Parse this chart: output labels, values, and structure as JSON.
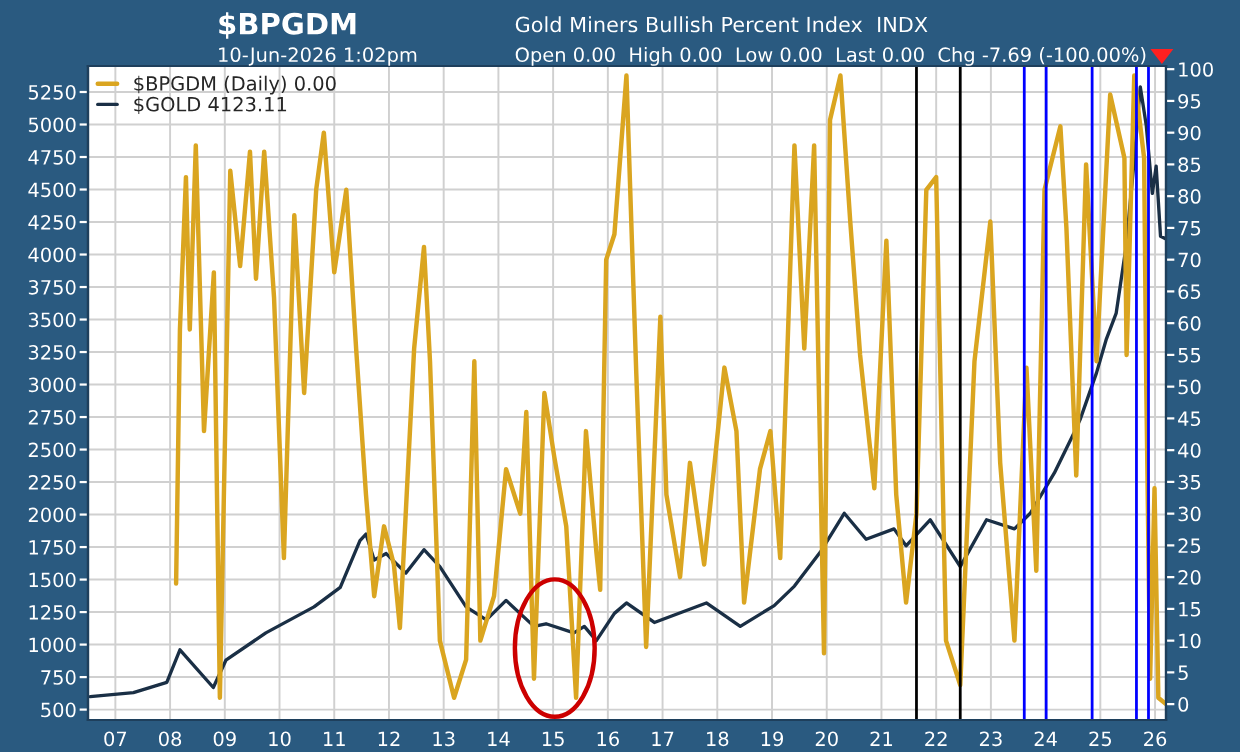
{
  "chart_data": {
    "type": "line",
    "title": "$BPGDM",
    "subtitle": "Gold Miners Bullish Percent Index  INDX",
    "annotations": [
      "10-Jun-2026 1:02pm",
      "Open 0.00  High 0.00  Low 0.00  Last 0.00  Chg -7.69 (-100.00%)"
    ],
    "series": [
      {
        "name": "$BPGDM (Daily) 0.00",
        "color": "#daa520",
        "axis": "y2",
        "x": [
          2008.11,
          2008.18,
          2008.29,
          2008.36,
          2008.47,
          2008.62,
          2008.8,
          2008.91,
          2009.02,
          2009.1,
          2009.28,
          2009.46,
          2009.57,
          2009.72,
          2009.9,
          2010.08,
          2010.27,
          2010.45,
          2010.67,
          2010.81,
          2011.0,
          2011.22,
          2011.4,
          2011.58,
          2011.73,
          2011.91,
          2012.09,
          2012.2,
          2012.46,
          2012.64,
          2012.75,
          2012.93,
          2013.19,
          2013.41,
          2013.56,
          2013.67,
          2013.92,
          2014.14,
          2014.4,
          2014.51,
          2014.65,
          2014.84,
          2015.02,
          2015.24,
          2015.42,
          2015.6,
          2015.79,
          2015.86,
          2015.97,
          2016.12,
          2016.34,
          2016.52,
          2016.7,
          2016.96,
          2017.07,
          2017.32,
          2017.5,
          2017.76,
          2018.13,
          2018.35,
          2018.49,
          2018.78,
          2018.97,
          2019.15,
          2019.41,
          2019.59,
          2019.77,
          2019.95,
          2020.06,
          2020.25,
          2020.43,
          2020.61,
          2020.87,
          2021.09,
          2021.27,
          2021.45,
          2021.64,
          2021.82,
          2022.0,
          2022.18,
          2022.44,
          2022.7,
          2022.99,
          2023.17,
          2023.43,
          2023.65,
          2023.83,
          2023.98,
          2024.27,
          2024.38,
          2024.56,
          2024.74,
          2024.93,
          2025.18,
          2025.44,
          2025.48,
          2025.62,
          2025.8,
          2025.84,
          2025.91,
          2025.99,
          2026.06,
          2026.2
        ],
        "values": [
          19,
          59,
          83,
          59,
          88,
          43,
          68,
          1,
          49,
          84,
          69,
          87,
          67,
          87,
          64,
          23,
          77,
          49,
          81,
          90,
          68,
          81,
          56,
          33,
          17,
          28,
          22,
          12,
          56,
          72,
          54,
          10,
          1,
          7,
          54,
          10,
          17,
          37,
          30,
          46,
          4,
          49,
          39,
          28,
          1,
          43,
          24,
          18,
          70,
          74,
          99,
          52,
          9,
          61,
          33,
          20,
          38,
          22,
          53,
          43,
          16,
          37,
          43,
          23,
          88,
          56,
          88,
          8,
          92,
          99,
          76,
          55,
          34,
          73,
          33,
          16,
          30,
          81,
          83,
          10,
          3,
          54,
          76,
          38,
          10,
          53,
          21,
          81,
          91,
          75,
          36,
          85,
          54,
          96,
          86,
          55,
          99,
          86,
          50,
          4,
          34,
          1,
          0
        ]
      },
      {
        "name": "$GOLD 4123.11",
        "color": "#1a2f45",
        "axis": "y",
        "x": [
          2006.54,
          2007.33,
          2007.94,
          2008.18,
          2008.79,
          2009.02,
          2009.75,
          2010.63,
          2011.11,
          2011.47,
          2011.58,
          2011.73,
          2011.95,
          2012.31,
          2012.64,
          2012.93,
          2013.41,
          2013.78,
          2014.14,
          2014.65,
          2014.87,
          2015.38,
          2015.57,
          2015.79,
          2016.12,
          2016.34,
          2016.85,
          2017.8,
          2018.42,
          2019.04,
          2019.41,
          2019.88,
          2020.32,
          2020.72,
          2021.23,
          2021.45,
          2021.89,
          2022.44,
          2022.92,
          2023.43,
          2023.72,
          2024.16,
          2024.52,
          2024.63,
          2024.93,
          2025.11,
          2025.29,
          2025.47,
          2025.62,
          2025.73,
          2025.84,
          2025.95,
          2026.02,
          2026.1,
          2026.2
        ],
        "values": [
          600,
          630,
          710,
          960,
          670,
          880,
          1090,
          1290,
          1440,
          1800,
          1850,
          1650,
          1700,
          1550,
          1730,
          1600,
          1290,
          1190,
          1340,
          1140,
          1160,
          1090,
          1140,
          1030,
          1240,
          1320,
          1170,
          1320,
          1140,
          1300,
          1450,
          1710,
          2010,
          1810,
          1890,
          1760,
          1960,
          1600,
          1960,
          1890,
          2010,
          2320,
          2630,
          2730,
          3090,
          3350,
          3550,
          4060,
          4730,
          5290,
          4990,
          4470,
          4680,
          4140,
          4120
        ]
      }
    ],
    "xlim": [
      2006.5,
      2026.2
    ],
    "xticks": [
      {
        "value": 2007,
        "label": "07"
      },
      {
        "value": 2008,
        "label": "08"
      },
      {
        "value": 2009,
        "label": "09"
      },
      {
        "value": 2010,
        "label": "10"
      },
      {
        "value": 2011,
        "label": "11"
      },
      {
        "value": 2012,
        "label": "12"
      },
      {
        "value": 2013,
        "label": "13"
      },
      {
        "value": 2014,
        "label": "14"
      },
      {
        "value": 2015,
        "label": "15"
      },
      {
        "value": 2016,
        "label": "16"
      },
      {
        "value": 2017,
        "label": "17"
      },
      {
        "value": 2018,
        "label": "18"
      },
      {
        "value": 2019,
        "label": "19"
      },
      {
        "value": 2020,
        "label": "20"
      },
      {
        "value": 2021,
        "label": "21"
      },
      {
        "value": 2022,
        "label": "22"
      },
      {
        "value": 2023,
        "label": "23"
      },
      {
        "value": 2024,
        "label": "24"
      },
      {
        "value": 2025,
        "label": "25"
      },
      {
        "value": 2026,
        "label": "26"
      }
    ],
    "ylim": [
      420,
      5450
    ],
    "yticks": [
      500,
      750,
      1000,
      1250,
      1500,
      1750,
      2000,
      2250,
      2500,
      2750,
      3000,
      3250,
      3500,
      3750,
      4000,
      4250,
      4500,
      4750,
      5000,
      5250
    ],
    "y2lim": [
      -2.5,
      100.5
    ],
    "y2ticks": [
      0,
      5,
      10,
      15,
      20,
      25,
      30,
      35,
      40,
      45,
      50,
      55,
      60,
      65,
      70,
      75,
      80,
      85,
      90,
      95,
      100
    ],
    "ref_lines": [
      {
        "axis": "x",
        "value": 2021.64,
        "color": "#000000"
      },
      {
        "axis": "x",
        "value": 2022.44,
        "color": "#000000"
      },
      {
        "axis": "x",
        "value": 2023.61,
        "color": "#0000ff"
      },
      {
        "axis": "x",
        "value": 2024.01,
        "color": "#0000ff"
      },
      {
        "axis": "x",
        "value": 2024.85,
        "color": "#0000ff"
      },
      {
        "axis": "x",
        "value": 2025.66,
        "color": "#0000ff"
      },
      {
        "axis": "x",
        "value": 2025.88,
        "color": "#0000ff"
      }
    ],
    "grid": true,
    "legend": "top left",
    "marker": "none",
    "line_style": "solid"
  }
}
